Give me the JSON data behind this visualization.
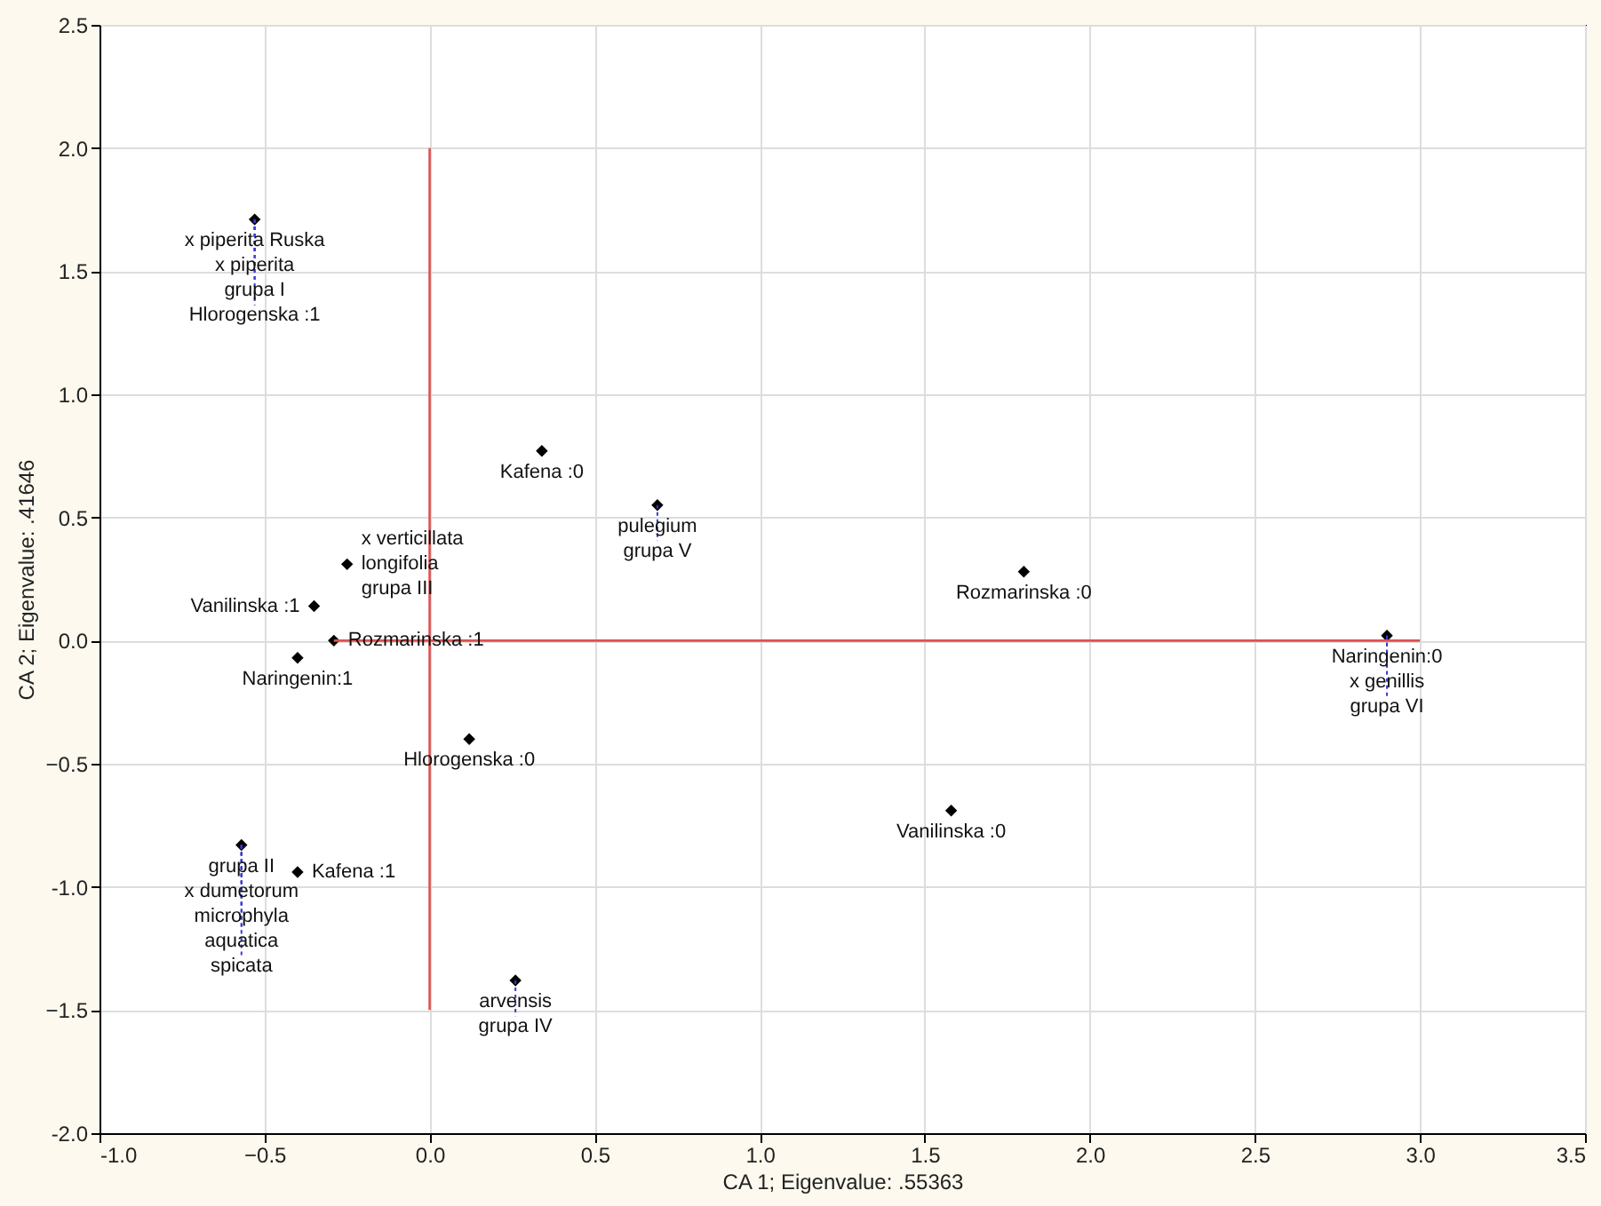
{
  "chart_data": {
    "type": "scatter",
    "xlabel": "CA 1; Eigenvalue: .55363",
    "ylabel": "CA 2; Eigenvalue: .41646",
    "x": [
      -0.53,
      -0.25,
      -0.35,
      -0.29,
      -0.4,
      0.12,
      -0.4,
      -0.57,
      0.34,
      0.69,
      0.26,
      1.8,
      1.58,
      2.9
    ],
    "series": [
      {
        "color": "#000000",
        "marker": "diamond",
        "values": [
          1.71,
          0.31,
          0.14,
          0.0,
          -0.07,
          -0.4,
          -0.94,
          -0.83,
          0.77,
          0.55,
          -1.38,
          0.28,
          -0.69,
          0.02
        ]
      },
      {
        "type": "line",
        "color": "#e05050",
        "x": [
          -0.29,
          3.0
        ],
        "values": [
          0.0,
          0.0
        ]
      },
      {
        "type": "line",
        "color": "#e05050",
        "x": [
          0.0,
          0.0
        ],
        "values": [
          2.0,
          -1.5
        ]
      }
    ],
    "grid": true,
    "xlim": [
      -1.0,
      3.5
    ],
    "ylim": [
      -2.0,
      2.5
    ],
    "xticks": [
      {
        "value": -1.0,
        "label": "-1.0"
      },
      -0.5,
      {
        "value": 0,
        "label": "0.0"
      },
      0.5,
      {
        "value": 1,
        "label": "1.0"
      },
      1.5,
      {
        "value": 2,
        "label": "2.0"
      },
      2.5,
      {
        "value": 3,
        "label": "3.0"
      },
      3.5
    ],
    "yticks": [
      {
        "value": -2.0,
        "label": "-2.0"
      },
      -1.5,
      {
        "value": -1,
        "label": "-1.0"
      },
      -0.5,
      {
        "value": 0,
        "label": "0.0"
      },
      0.5,
      {
        "value": 1,
        "label": "1.0"
      },
      1.5,
      {
        "value": 2,
        "label": "2.0"
      },
      2.5
    ],
    "annotations": [
      {
        "text": "x piperita Ruska",
        "x": -0.53,
        "y": 1.71
      },
      {
        "text": "x piperita",
        "x": -0.53,
        "y": 1.71
      },
      {
        "text": "grupa I",
        "x": -0.53,
        "y": 1.71
      },
      {
        "text": "Hlorogenska :1",
        "x": -0.53,
        "y": 1.71
      },
      {
        "text": "x verticillata",
        "x": -0.25,
        "y": 0.31
      },
      {
        "text": "longifolia",
        "x": -0.25,
        "y": 0.31
      },
      {
        "text": "grupa III",
        "x": -0.25,
        "y": 0.31
      },
      {
        "text": "Vanilinska :1",
        "x": -0.35,
        "y": 0.14
      },
      {
        "text": "Rozmarinska :1",
        "x": -0.29,
        "y": 0.0
      },
      {
        "text": "Naringenin:1",
        "x": -0.4,
        "y": -0.07
      },
      {
        "text": "Hlorogenska :0",
        "x": 0.12,
        "y": -0.4
      },
      {
        "text": "Kafena :1",
        "x": -0.4,
        "y": -0.94
      },
      {
        "text": "grupa II",
        "x": -0.57,
        "y": -0.83
      },
      {
        "text": "x dumetorum",
        "x": -0.57,
        "y": -0.83
      },
      {
        "text": "microphyla",
        "x": -0.57,
        "y": -0.83
      },
      {
        "text": "aquatica",
        "x": -0.57,
        "y": -0.83
      },
      {
        "text": "spicata",
        "x": -0.57,
        "y": -0.83
      },
      {
        "text": "Kafena :0",
        "x": 0.34,
        "y": 0.77
      },
      {
        "text": "pulegium",
        "x": 0.69,
        "y": 0.55
      },
      {
        "text": "grupa V",
        "x": 0.69,
        "y": 0.55
      },
      {
        "text": "arvensis",
        "x": 0.26,
        "y": -1.38
      },
      {
        "text": "grupa IV",
        "x": 0.26,
        "y": -1.38
      },
      {
        "text": "Rozmarinska :0",
        "x": 1.8,
        "y": 0.28
      },
      {
        "text": "Vanilinska :0",
        "x": 1.58,
        "y": -0.69
      },
      {
        "text": "Naringenin:0",
        "x": 2.9,
        "y": 0.02
      },
      {
        "text": "x genillis",
        "x": 2.9,
        "y": 0.02
      },
      {
        "text": "grupa VI",
        "x": 2.9,
        "y": 0.02
      }
    ]
  }
}
